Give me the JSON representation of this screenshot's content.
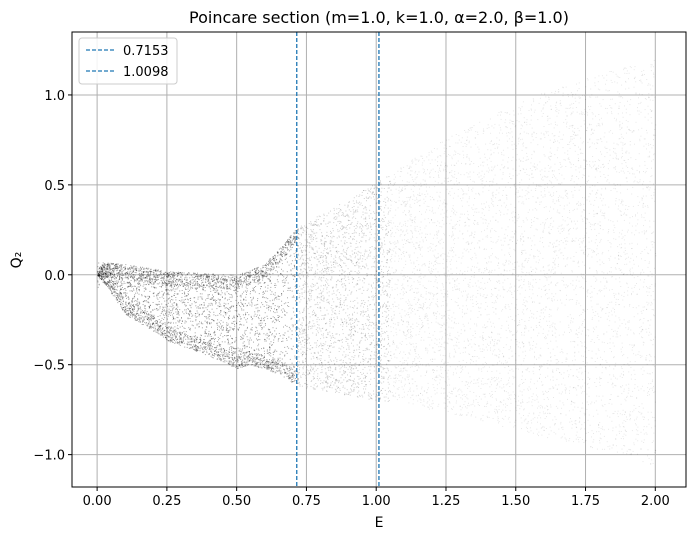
{
  "chart_data": {
    "type": "scatter",
    "title": "Poincare section (m=1.0, k=1.0, α=2.0, β=1.0)",
    "xlabel": "E",
    "ylabel": "Q₂",
    "xlim": [
      -0.09,
      2.11
    ],
    "ylim": [
      -1.18,
      1.35
    ],
    "x_ticks": [
      0.0,
      0.25,
      0.5,
      0.75,
      1.0,
      1.25,
      1.5,
      1.75,
      2.0
    ],
    "x_tick_labels": [
      "0.00",
      "0.25",
      "0.50",
      "0.75",
      "1.00",
      "1.25",
      "1.50",
      "1.75",
      "2.00"
    ],
    "y_ticks": [
      -1.0,
      -0.5,
      0.0,
      0.5,
      1.0
    ],
    "y_tick_labels": [
      "−1.0",
      "−0.5",
      "0.0",
      "0.5",
      "1.0"
    ],
    "grid": true,
    "legend_position": "top-left",
    "point_color": "#000000",
    "vlines": [
      {
        "name": "0.7153",
        "x": 0.7153,
        "color": "#1f77b4",
        "style": "dashed"
      },
      {
        "name": "1.0098",
        "x": 1.0098,
        "color": "#1f77b4",
        "style": "dashed"
      }
    ],
    "point_cloud": [
      {
        "x_range": [
          0.0,
          0.72
        ],
        "y_upper": [
          [
            0.0,
            0.0
          ],
          [
            0.02,
            0.07
          ],
          [
            0.1,
            0.06
          ],
          [
            0.26,
            0.02
          ],
          [
            0.5,
            0.0
          ],
          [
            0.6,
            0.06
          ],
          [
            0.72,
            0.27
          ]
        ],
        "y_lower": [
          [
            0.0,
            0.0
          ],
          [
            0.05,
            -0.1
          ],
          [
            0.1,
            -0.22
          ],
          [
            0.2,
            -0.31
          ],
          [
            0.26,
            -0.37
          ],
          [
            0.4,
            -0.45
          ],
          [
            0.5,
            -0.52
          ],
          [
            0.55,
            -0.5
          ],
          [
            0.65,
            -0.55
          ],
          [
            0.72,
            -0.62
          ]
        ]
      },
      {
        "x_range": [
          0.72,
          1.05
        ],
        "y_upper": [
          [
            0.72,
            0.27
          ],
          [
            0.8,
            0.34
          ],
          [
            0.9,
            0.42
          ],
          [
            1.0,
            0.52
          ],
          [
            1.05,
            0.56
          ]
        ],
        "y_lower": [
          [
            0.72,
            -0.62
          ],
          [
            0.8,
            -0.64
          ],
          [
            0.9,
            -0.67
          ],
          [
            1.0,
            -0.7
          ],
          [
            1.05,
            -0.71
          ]
        ]
      },
      {
        "x_range": [
          1.05,
          2.0
        ],
        "y_upper": [
          [
            1.05,
            0.56
          ],
          [
            1.2,
            0.72
          ],
          [
            1.4,
            0.88
          ],
          [
            1.6,
            1.02
          ],
          [
            1.8,
            1.12
          ],
          [
            2.0,
            1.21
          ]
        ],
        "y_lower": [
          [
            1.05,
            -0.71
          ],
          [
            1.2,
            -0.75
          ],
          [
            1.4,
            -0.82
          ],
          [
            1.6,
            -0.9
          ],
          [
            1.8,
            -0.97
          ],
          [
            2.0,
            -1.06
          ]
        ]
      }
    ]
  }
}
